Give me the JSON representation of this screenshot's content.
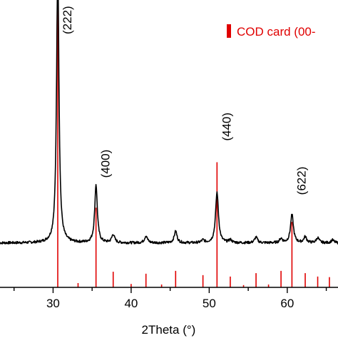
{
  "chart_data": {
    "type": "line",
    "xlabel": "2Theta (°)",
    "ylabel": "",
    "xlim": [
      23.2,
      66.5
    ],
    "ylim": [
      0,
      100
    ],
    "x_ticks": [
      30,
      40,
      50,
      60
    ],
    "x_tick_labels": [
      "30",
      "40",
      "50",
      "60"
    ],
    "grid": false,
    "legend": {
      "position": "top-right",
      "entries": [
        {
          "name": "COD card (00-",
          "color": "#e00000",
          "marker": "bar"
        }
      ]
    },
    "series": [
      {
        "color": "#000000",
        "baseline": 15.6,
        "peaks": [
          {
            "x": 30.6,
            "height": 100,
            "width": 0.18
          },
          {
            "x": 35.5,
            "height": 20.5,
            "width": 0.2
          },
          {
            "x": 37.7,
            "height": 2.9,
            "width": 0.22
          },
          {
            "x": 41.9,
            "height": 2.5,
            "width": 0.22
          },
          {
            "x": 45.7,
            "height": 4.1,
            "width": 0.22
          },
          {
            "x": 49.2,
            "height": 0.9,
            "width": 0.22
          },
          {
            "x": 51.0,
            "height": 17.8,
            "width": 0.22
          },
          {
            "x": 52.7,
            "height": 1.0,
            "width": 0.22
          },
          {
            "x": 56.0,
            "height": 2.0,
            "width": 0.22
          },
          {
            "x": 59.2,
            "height": 1.5,
            "width": 0.22
          },
          {
            "x": 60.6,
            "height": 10.0,
            "width": 0.22
          },
          {
            "x": 62.3,
            "height": 2.1,
            "width": 0.22
          },
          {
            "x": 63.9,
            "height": 1.8,
            "width": 0.22
          },
          {
            "x": 65.8,
            "height": 1.0,
            "width": 0.22
          }
        ]
      },
      {
        "name": "COD card (00-",
        "type": "stick",
        "color": "#e00000",
        "positions": [
          30.6,
          33.2,
          35.5,
          37.7,
          40.0,
          41.9,
          43.9,
          45.7,
          49.2,
          51.0,
          52.7,
          54.4,
          56.0,
          57.6,
          59.2,
          60.6,
          62.3,
          63.9,
          65.4
        ],
        "heights": [
          100,
          1.5,
          28,
          5.5,
          1.2,
          4.8,
          1.0,
          5.8,
          4.3,
          44,
          3.8,
          0.8,
          5.0,
          1.0,
          5.8,
          23,
          5.0,
          3.8,
          3.6
        ]
      }
    ],
    "annotations": [
      {
        "text": "(222)",
        "x": 30.6,
        "y": 100
      },
      {
        "text": "(400)",
        "x": 35.5,
        "y": 37
      },
      {
        "text": "(440)",
        "x": 51.0,
        "y": 50
      },
      {
        "text": "(622)",
        "x": 60.6,
        "y": 31
      }
    ]
  }
}
